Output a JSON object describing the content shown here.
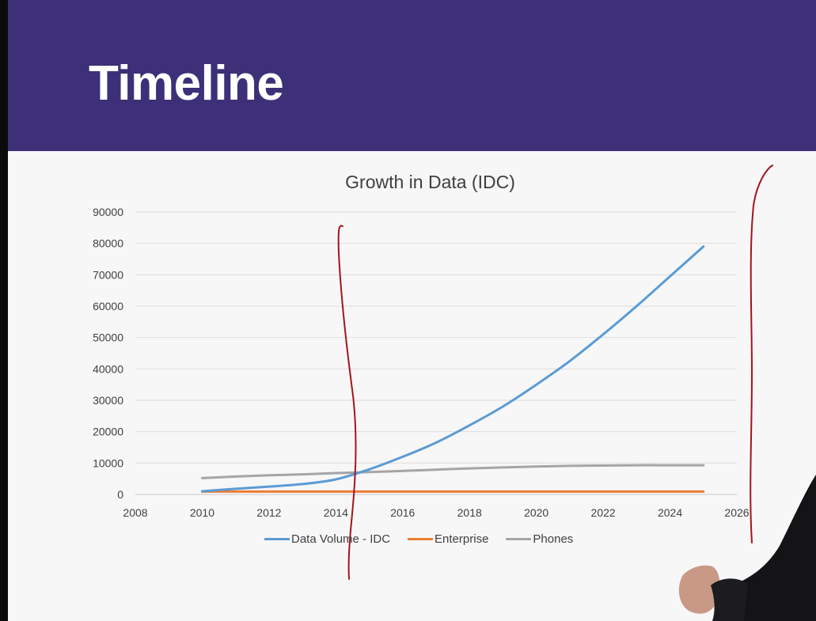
{
  "slide": {
    "title": "Timeline"
  },
  "chart_data": {
    "type": "line",
    "title": "Growth in Data (IDC)",
    "xlabel": "",
    "ylabel": "",
    "xlim": [
      2008,
      2026
    ],
    "ylim": [
      0,
      90000
    ],
    "x_ticks": [
      "2008",
      "2010",
      "2012",
      "2014",
      "2016",
      "2018",
      "2020",
      "2022",
      "2024",
      "2026"
    ],
    "y_ticks": [
      "0",
      "10000",
      "20000",
      "30000",
      "40000",
      "50000",
      "60000",
      "70000",
      "80000",
      "90000"
    ],
    "grid": "horizontal",
    "legend_position": "bottom",
    "series": [
      {
        "name": "Data Volume - IDC",
        "color": "#5b9bd5",
        "points": [
          [
            2010,
            1000
          ],
          [
            2011,
            1800
          ],
          [
            2012,
            2500
          ],
          [
            2013,
            3300
          ],
          [
            2014,
            4800
          ],
          [
            2015,
            8000
          ],
          [
            2016,
            12000
          ],
          [
            2017,
            16500
          ],
          [
            2018,
            22000
          ],
          [
            2019,
            28000
          ],
          [
            2020,
            35000
          ],
          [
            2021,
            42500
          ],
          [
            2022,
            51000
          ],
          [
            2023,
            60000
          ],
          [
            2024,
            69500
          ],
          [
            2025,
            79000
          ]
        ]
      },
      {
        "name": "Enterprise",
        "color": "#ed7d31",
        "points": [
          [
            2010,
            900
          ],
          [
            2012,
            900
          ],
          [
            2014,
            900
          ],
          [
            2016,
            900
          ],
          [
            2018,
            900
          ],
          [
            2020,
            900
          ],
          [
            2022,
            900
          ],
          [
            2024,
            900
          ],
          [
            2025,
            900
          ]
        ]
      },
      {
        "name": "Phones",
        "color": "#a5a5a5",
        "points": [
          [
            2010,
            5200
          ],
          [
            2011,
            5700
          ],
          [
            2012,
            6100
          ],
          [
            2013,
            6400
          ],
          [
            2014,
            6800
          ],
          [
            2015,
            7100
          ],
          [
            2016,
            7500
          ],
          [
            2017,
            7900
          ],
          [
            2018,
            8300
          ],
          [
            2019,
            8600
          ],
          [
            2020,
            8900
          ],
          [
            2021,
            9100
          ],
          [
            2022,
            9200
          ],
          [
            2023,
            9300
          ],
          [
            2024,
            9300
          ],
          [
            2025,
            9300
          ]
        ]
      }
    ]
  }
}
